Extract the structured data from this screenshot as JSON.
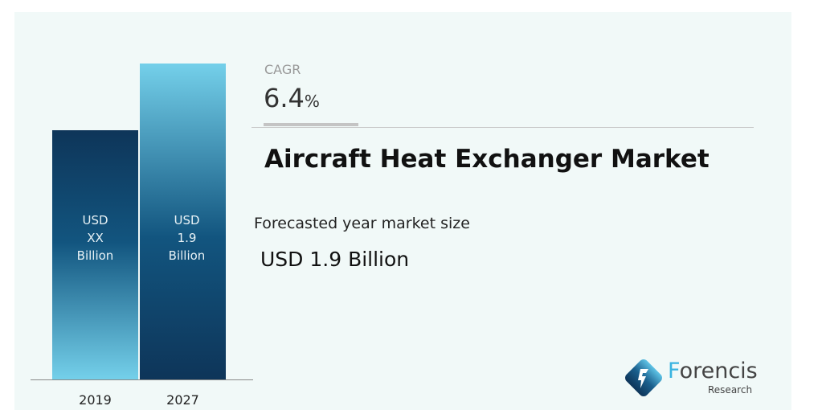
{
  "chart_data": {
    "type": "bar",
    "categories": [
      "2019",
      "2027"
    ],
    "values": [
      1.5,
      1.9
    ],
    "bar_labels": [
      [
        "USD",
        "XX",
        "Billion"
      ],
      [
        "USD",
        "1.9",
        "Billion"
      ]
    ],
    "ylim": [
      0,
      1.9
    ],
    "grid": false,
    "colors": {
      "dark": "#0e3559",
      "mid": "#12557f",
      "light": "#74d0ea"
    }
  },
  "cagr": {
    "label": "CAGR",
    "value": "6.4",
    "unit": "%"
  },
  "title": "Aircraft Heat Exchanger Market",
  "forecast": {
    "label": "Forecasted year market size",
    "value": "USD 1.9 Billion"
  },
  "logo": {
    "name": "Forencis",
    "sub": "Research"
  }
}
